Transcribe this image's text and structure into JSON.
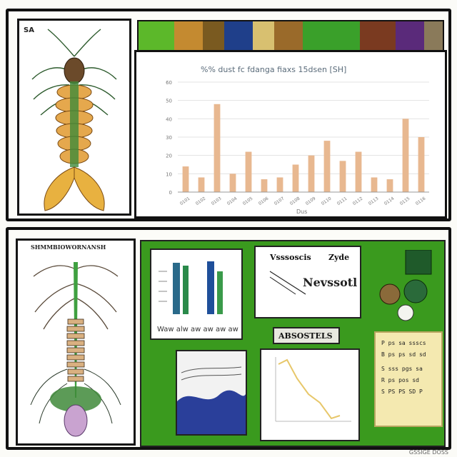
{
  "top_panel": {
    "corner_label": "SA",
    "chart_data": {
      "type": "bar",
      "title": "%% dust fc fdanga fiaxs 15dsen [SH]",
      "xlabel": "Dus",
      "ylabel": "",
      "bar_color": "#e8b890",
      "values": [
        14,
        8,
        48,
        10,
        22,
        7,
        8,
        15,
        20,
        28,
        17,
        22,
        8,
        7,
        40,
        30
      ],
      "ylim": [
        0,
        60
      ],
      "y_ticks": [
        "0",
        "10",
        "20",
        "30",
        "40",
        "50",
        "60"
      ],
      "categories": [
        "0101",
        "0102",
        "0103",
        "0104",
        "0105",
        "0106",
        "0107",
        "0108",
        "0109",
        "0110",
        "0111",
        "0112",
        "0113",
        "0114",
        "0115",
        "0116"
      ],
      "grid": true
    }
  },
  "bottom_panel": {
    "illustration_heading": "SHMMBIOWORNANSH",
    "poster_caption": "Waw alw aw aw aw aw",
    "note_header": "Vsssoscis",
    "note_side": "Zyde",
    "note_title": "Nevssotl",
    "label_card": "ABSOSTELS",
    "sign_lines": [
      "P ps sa ssscs",
      "B ps ps sd sd",
      "S sss pgs sa",
      "R ps pos sd",
      "S PS PS SD P"
    ],
    "watermark": "GSSIGE DOSS"
  },
  "colors": {
    "bar": "#e8b890",
    "grid": "#e3e3e3",
    "collage_green": "#3a9a1e",
    "line_yellow": "#e7c76a"
  }
}
